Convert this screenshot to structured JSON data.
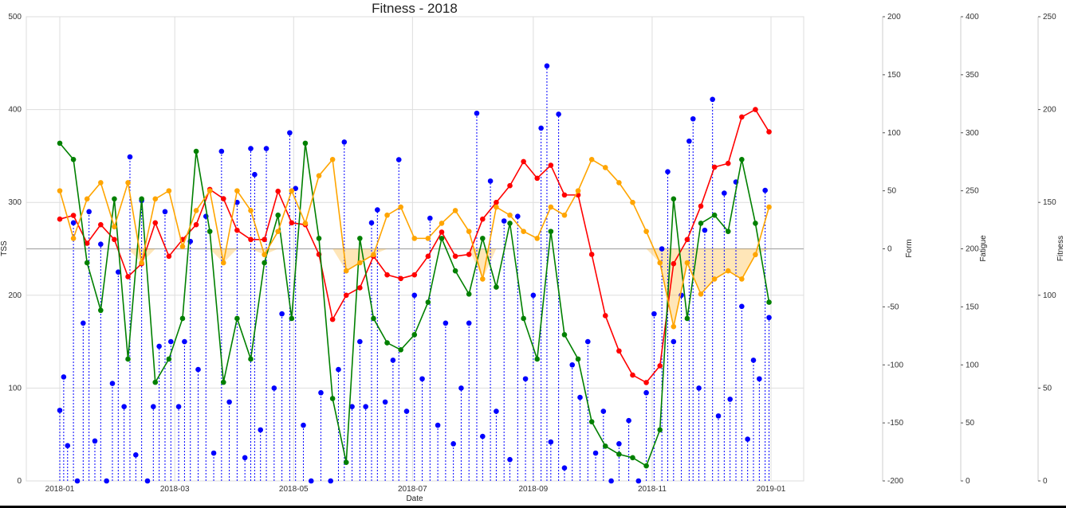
{
  "chart_data": {
    "type": "line",
    "title": "Fitness - 2018",
    "xlabel": "Date",
    "x_ticks": [
      "2018-01",
      "2018-03",
      "2018-05",
      "2018-07",
      "2018-09",
      "2018-11",
      "2019-01"
    ],
    "x_range": [
      "2017-12-17",
      "2019-01-16"
    ],
    "grid": true,
    "axes": {
      "tss": {
        "label": "TSS",
        "side": "left",
        "ylim": [
          0,
          500
        ],
        "ticks": [
          0,
          100,
          200,
          300,
          400,
          500
        ]
      },
      "form": {
        "label": "Form",
        "side": "right",
        "ylim": [
          -200,
          200
        ],
        "ticks": [
          -200,
          -150,
          -100,
          -50,
          0,
          50,
          100,
          150,
          200
        ]
      },
      "fatigue": {
        "label": "Fatigue",
        "side": "right",
        "ylim": [
          0,
          400
        ],
        "ticks": [
          0,
          50,
          100,
          150,
          200,
          250,
          300,
          350,
          400
        ]
      },
      "fitness": {
        "label": "Fitness",
        "side": "right",
        "ylim": [
          0,
          250
        ],
        "ticks": [
          0,
          50,
          100,
          150,
          200,
          250
        ]
      }
    },
    "dates": [
      "2018-01-01",
      "2018-01-08",
      "2018-01-15",
      "2018-01-22",
      "2018-01-29",
      "2018-02-05",
      "2018-02-12",
      "2018-02-19",
      "2018-02-26",
      "2018-03-05",
      "2018-03-12",
      "2018-03-19",
      "2018-03-26",
      "2018-04-02",
      "2018-04-09",
      "2018-04-16",
      "2018-04-23",
      "2018-04-30",
      "2018-05-07",
      "2018-05-14",
      "2018-05-21",
      "2018-05-28",
      "2018-06-04",
      "2018-06-11",
      "2018-06-18",
      "2018-06-25",
      "2018-07-02",
      "2018-07-09",
      "2018-07-16",
      "2018-07-23",
      "2018-07-30",
      "2018-08-06",
      "2018-08-13",
      "2018-08-20",
      "2018-08-27",
      "2018-09-03",
      "2018-09-10",
      "2018-09-17",
      "2018-09-24",
      "2018-10-01",
      "2018-10-08",
      "2018-10-15",
      "2018-10-22",
      "2018-10-29",
      "2018-11-05",
      "2018-11-12",
      "2018-11-19",
      "2018-11-26",
      "2018-12-03",
      "2018-12-10",
      "2018-12-17",
      "2018-12-24",
      "2018-12-31"
    ],
    "series": [
      {
        "axis": "fitness",
        "color": "#ff0000",
        "values": [
          141,
          143,
          128,
          138,
          130,
          110,
          117,
          139,
          121,
          130,
          138,
          157,
          152,
          135,
          130,
          130,
          156,
          139,
          138,
          122,
          87,
          100,
          104,
          121,
          111,
          109,
          111,
          121,
          134,
          121,
          122,
          141,
          150,
          159,
          172,
          163,
          170,
          154,
          154,
          122,
          89,
          70,
          57,
          53,
          62,
          117,
          130,
          148,
          169,
          171,
          196,
          200,
          188
        ]
      },
      {
        "axis": "fatigue",
        "color": "#008000",
        "values": [
          291,
          277,
          188,
          147,
          243,
          105,
          243,
          85,
          105,
          140,
          284,
          215,
          85,
          140,
          105,
          188,
          229,
          140,
          291,
          209,
          71,
          16,
          209,
          140,
          119,
          113,
          126,
          154,
          209,
          181,
          161,
          209,
          167,
          222,
          140,
          105,
          215,
          126,
          105,
          51,
          30,
          23,
          20,
          13,
          44,
          243,
          140,
          222,
          229,
          215,
          277,
          222,
          154
        ]
      },
      {
        "axis": "form",
        "color": "#ffa500",
        "fill_below_zero": true,
        "values": [
          50,
          9,
          43,
          57,
          19,
          57,
          -12,
          43,
          50,
          2,
          33,
          50,
          -12,
          50,
          33,
          -5,
          15,
          50,
          22,
          63,
          77,
          -19,
          -12,
          -5,
          29,
          36,
          9,
          9,
          22,
          33,
          15,
          -26,
          36,
          29,
          15,
          9,
          36,
          29,
          50,
          77,
          70,
          57,
          40,
          15,
          -12,
          -67,
          -12,
          -39,
          -26,
          -19,
          -26,
          -5,
          36
        ]
      }
    ],
    "tss": {
      "axis": "tss",
      "color": "#0000ff",
      "style": "stem-dashed",
      "points": [
        {
          "date": "2018-01-01",
          "value": 76
        },
        {
          "date": "2018-01-03",
          "value": 112
        },
        {
          "date": "2018-01-05",
          "value": 38
        },
        {
          "date": "2018-01-08",
          "value": 278
        },
        {
          "date": "2018-01-10",
          "value": 0
        },
        {
          "date": "2018-01-13",
          "value": 170
        },
        {
          "date": "2018-01-16",
          "value": 290
        },
        {
          "date": "2018-01-19",
          "value": 43
        },
        {
          "date": "2018-01-22",
          "value": 255
        },
        {
          "date": "2018-01-25",
          "value": 0
        },
        {
          "date": "2018-01-28",
          "value": 105
        },
        {
          "date": "2018-01-31",
          "value": 225
        },
        {
          "date": "2018-02-03",
          "value": 80
        },
        {
          "date": "2018-02-06",
          "value": 349
        },
        {
          "date": "2018-02-09",
          "value": 28
        },
        {
          "date": "2018-02-12",
          "value": 302
        },
        {
          "date": "2018-02-15",
          "value": 0
        },
        {
          "date": "2018-02-18",
          "value": 80
        },
        {
          "date": "2018-02-21",
          "value": 145
        },
        {
          "date": "2018-02-24",
          "value": 290
        },
        {
          "date": "2018-02-27",
          "value": 150
        },
        {
          "date": "2018-03-03",
          "value": 80
        },
        {
          "date": "2018-03-06",
          "value": 150
        },
        {
          "date": "2018-03-09",
          "value": 258
        },
        {
          "date": "2018-03-13",
          "value": 120
        },
        {
          "date": "2018-03-17",
          "value": 285
        },
        {
          "date": "2018-03-21",
          "value": 30
        },
        {
          "date": "2018-03-25",
          "value": 355
        },
        {
          "date": "2018-03-29",
          "value": 85
        },
        {
          "date": "2018-04-02",
          "value": 300
        },
        {
          "date": "2018-04-06",
          "value": 25
        },
        {
          "date": "2018-04-09",
          "value": 358
        },
        {
          "date": "2018-04-11",
          "value": 330
        },
        {
          "date": "2018-04-14",
          "value": 55
        },
        {
          "date": "2018-04-17",
          "value": 358
        },
        {
          "date": "2018-04-21",
          "value": 100
        },
        {
          "date": "2018-04-25",
          "value": 180
        },
        {
          "date": "2018-04-29",
          "value": 375
        },
        {
          "date": "2018-05-02",
          "value": 315
        },
        {
          "date": "2018-05-06",
          "value": 60
        },
        {
          "date": "2018-05-10",
          "value": 0
        },
        {
          "date": "2018-05-15",
          "value": 95
        },
        {
          "date": "2018-05-20",
          "value": 0
        },
        {
          "date": "2018-05-24",
          "value": 120
        },
        {
          "date": "2018-05-27",
          "value": 365
        },
        {
          "date": "2018-05-31",
          "value": 80
        },
        {
          "date": "2018-06-04",
          "value": 150
        },
        {
          "date": "2018-06-07",
          "value": 80
        },
        {
          "date": "2018-06-10",
          "value": 278
        },
        {
          "date": "2018-06-13",
          "value": 292
        },
        {
          "date": "2018-06-17",
          "value": 85
        },
        {
          "date": "2018-06-21",
          "value": 130
        },
        {
          "date": "2018-06-24",
          "value": 346
        },
        {
          "date": "2018-06-28",
          "value": 75
        },
        {
          "date": "2018-07-02",
          "value": 200
        },
        {
          "date": "2018-07-06",
          "value": 110
        },
        {
          "date": "2018-07-10",
          "value": 283
        },
        {
          "date": "2018-07-14",
          "value": 60
        },
        {
          "date": "2018-07-18",
          "value": 170
        },
        {
          "date": "2018-07-22",
          "value": 40
        },
        {
          "date": "2018-07-26",
          "value": 100
        },
        {
          "date": "2018-07-30",
          "value": 170
        },
        {
          "date": "2018-08-03",
          "value": 396
        },
        {
          "date": "2018-08-06",
          "value": 48
        },
        {
          "date": "2018-08-10",
          "value": 323
        },
        {
          "date": "2018-08-13",
          "value": 75
        },
        {
          "date": "2018-08-17",
          "value": 280
        },
        {
          "date": "2018-08-20",
          "value": 23
        },
        {
          "date": "2018-08-24",
          "value": 285
        },
        {
          "date": "2018-08-28",
          "value": 110
        },
        {
          "date": "2018-09-01",
          "value": 200
        },
        {
          "date": "2018-09-05",
          "value": 380
        },
        {
          "date": "2018-09-08",
          "value": 447
        },
        {
          "date": "2018-09-10",
          "value": 42
        },
        {
          "date": "2018-09-14",
          "value": 395
        },
        {
          "date": "2018-09-17",
          "value": 14
        },
        {
          "date": "2018-09-21",
          "value": 125
        },
        {
          "date": "2018-09-25",
          "value": 90
        },
        {
          "date": "2018-09-29",
          "value": 150
        },
        {
          "date": "2018-10-03",
          "value": 30
        },
        {
          "date": "2018-10-07",
          "value": 75
        },
        {
          "date": "2018-10-11",
          "value": 0
        },
        {
          "date": "2018-10-15",
          "value": 40
        },
        {
          "date": "2018-10-20",
          "value": 65
        },
        {
          "date": "2018-10-25",
          "value": 0
        },
        {
          "date": "2018-10-29",
          "value": 95
        },
        {
          "date": "2018-11-02",
          "value": 180
        },
        {
          "date": "2018-11-06",
          "value": 250
        },
        {
          "date": "2018-11-09",
          "value": 333
        },
        {
          "date": "2018-11-12",
          "value": 150
        },
        {
          "date": "2018-11-16",
          "value": 200
        },
        {
          "date": "2018-11-20",
          "value": 366
        },
        {
          "date": "2018-11-22",
          "value": 390
        },
        {
          "date": "2018-11-25",
          "value": 100
        },
        {
          "date": "2018-11-28",
          "value": 270
        },
        {
          "date": "2018-12-02",
          "value": 411
        },
        {
          "date": "2018-12-05",
          "value": 70
        },
        {
          "date": "2018-12-08",
          "value": 310
        },
        {
          "date": "2018-12-11",
          "value": 88
        },
        {
          "date": "2018-12-14",
          "value": 322
        },
        {
          "date": "2018-12-17",
          "value": 188
        },
        {
          "date": "2018-12-20",
          "value": 45
        },
        {
          "date": "2018-12-23",
          "value": 130
        },
        {
          "date": "2018-12-26",
          "value": 110
        },
        {
          "date": "2018-12-29",
          "value": 313
        },
        {
          "date": "2018-12-31",
          "value": 176
        }
      ]
    }
  }
}
